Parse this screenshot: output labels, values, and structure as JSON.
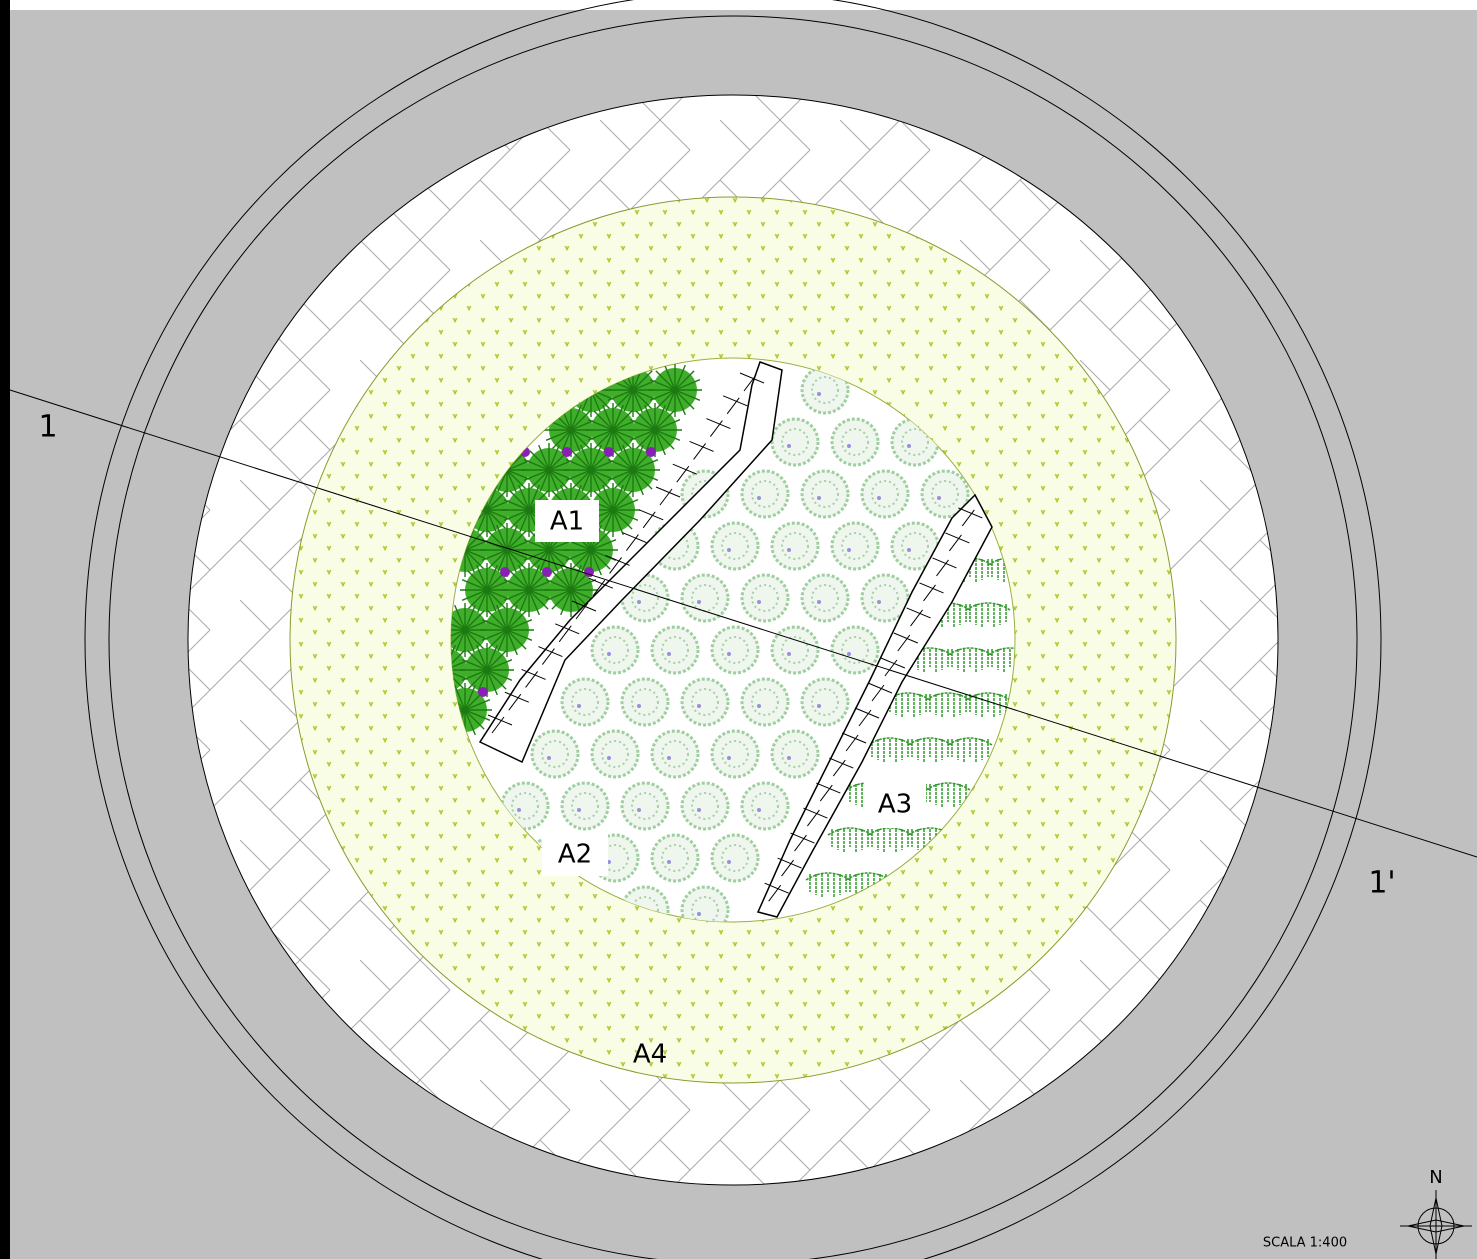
{
  "section_line": {
    "start_label": "1",
    "end_label": "1'"
  },
  "zones": [
    {
      "label": "A1"
    },
    {
      "label": "A2"
    },
    {
      "label": "A3"
    },
    {
      "label": "A4"
    }
  ],
  "north_arrow": {
    "label": "N"
  },
  "scale": {
    "label": "SCALA 1:400"
  }
}
